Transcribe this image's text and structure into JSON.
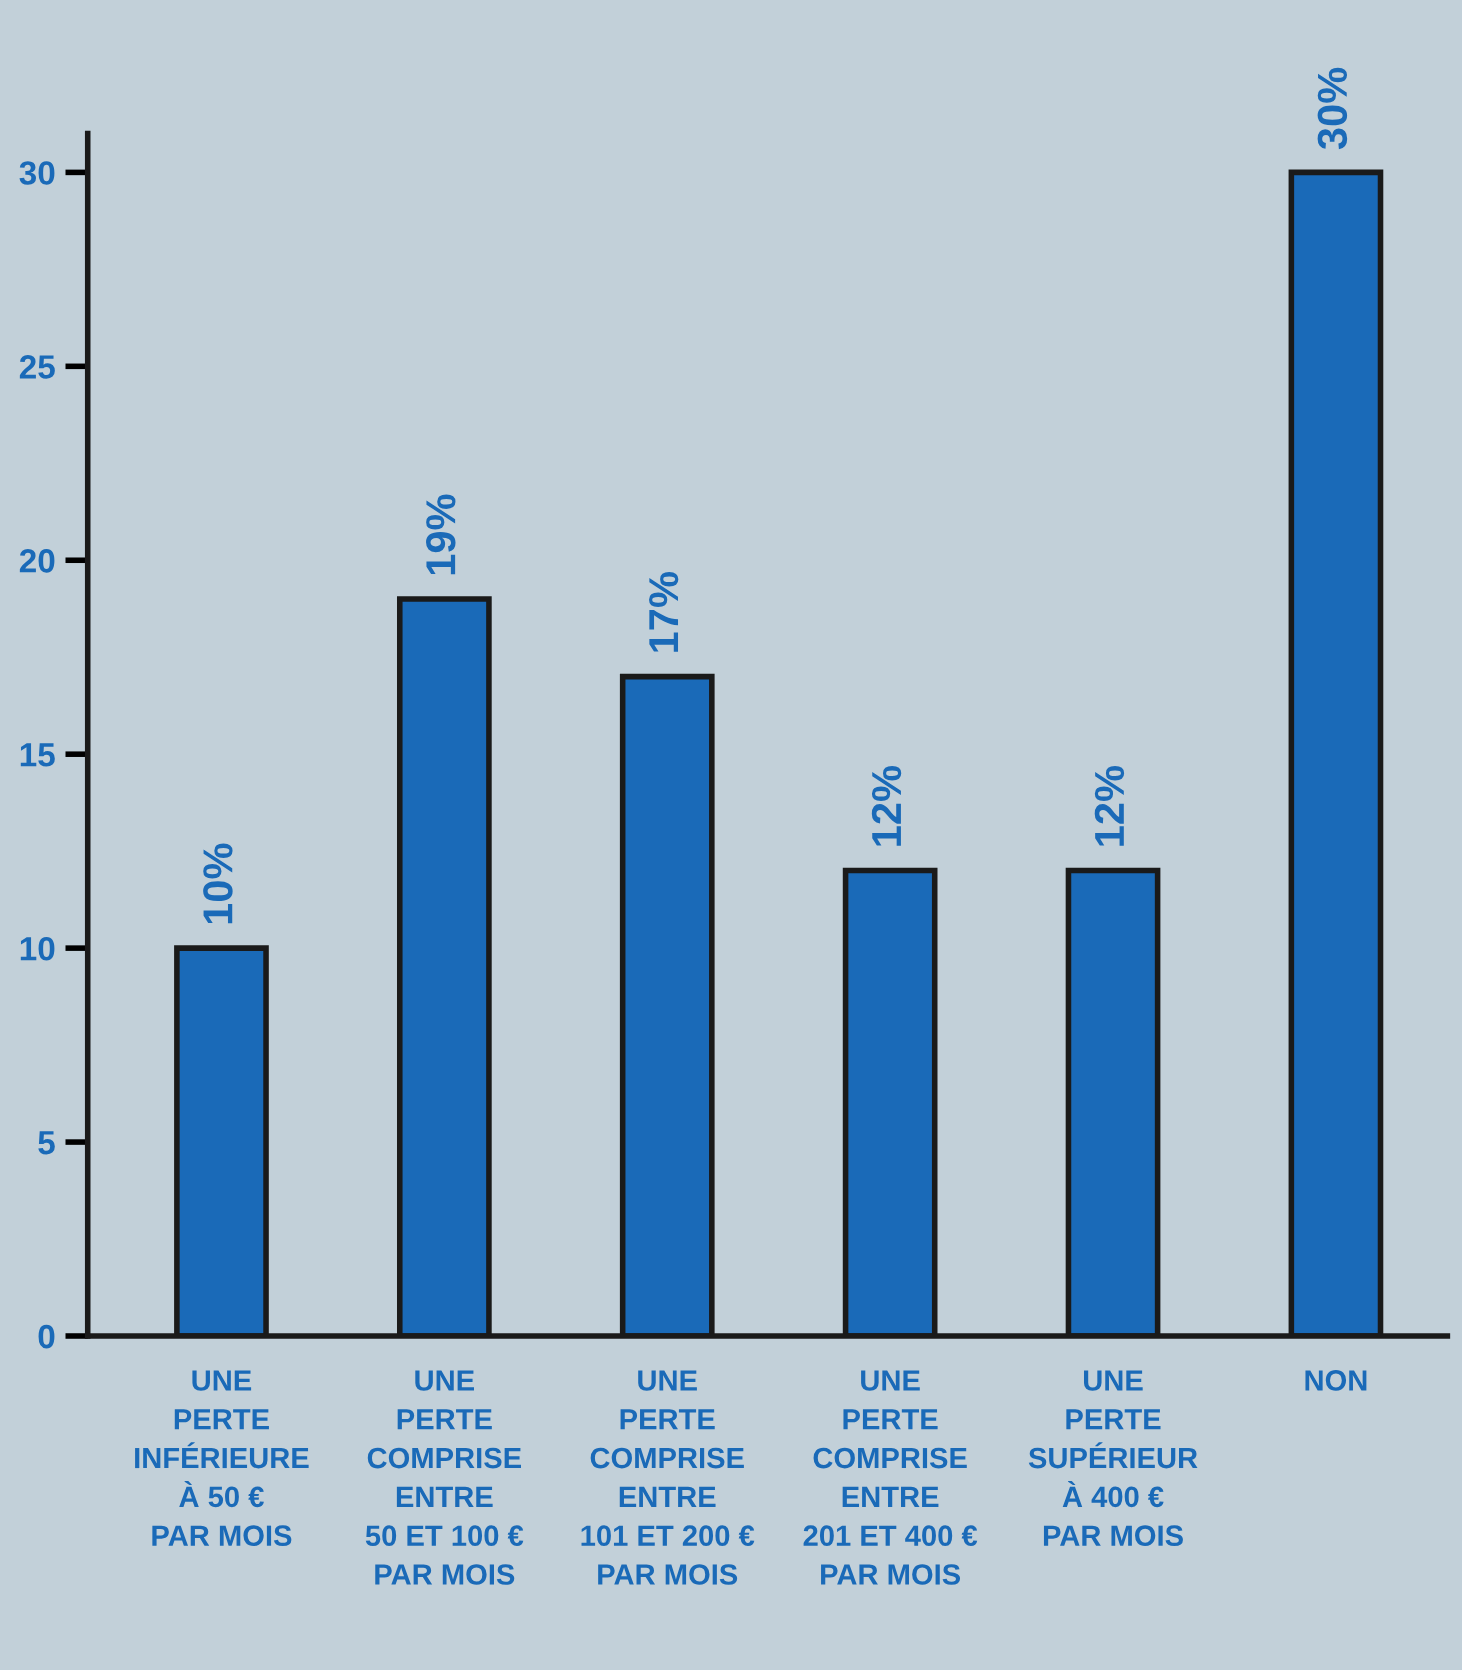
{
  "chart_data": {
    "type": "bar",
    "categories": [
      "UNE\nPERTE\nINFÉRIEURE\nÀ 50 €\nPAR MOIS",
      "UNE\nPERTE\nCOMPRISE\nENTRE\n50 ET 100 €\nPAR MOIS",
      "UNE\nPERTE\nCOMPRISE\nENTRE\n101 ET 200 €\nPAR MOIS",
      "UNE\nPERTE\nCOMPRISE\nENTRE\n201 ET 400 €\nPAR MOIS",
      "UNE\nPERTE\nSUPÉRIEUR\nÀ 400 €\nPAR MOIS",
      "NON"
    ],
    "values": [
      10,
      19,
      17,
      12,
      12,
      30
    ],
    "value_labels": [
      "10%",
      "19%",
      "17%",
      "12%",
      "12%",
      "30%"
    ],
    "color": "#1a6ab8",
    "ylim": [
      0,
      31
    ],
    "yticks": [
      0,
      5,
      10,
      15,
      20,
      25,
      30
    ],
    "grid": false,
    "legend": false
  }
}
